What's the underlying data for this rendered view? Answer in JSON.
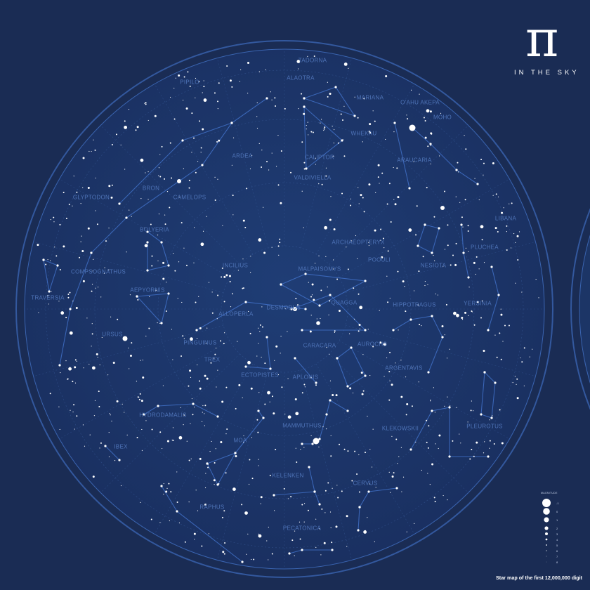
{
  "title": {
    "symbol": "π",
    "subtitle": "IN THE SKY"
  },
  "caption": "Star map of the first 12,000,000 digit",
  "colors": {
    "background": "#1a2c54",
    "disc": "#1c3566",
    "lines": "#3f6ec4",
    "labels": "#4f74b8",
    "stars": "#ffffff"
  },
  "legend": {
    "title": "MAGNITUDE",
    "magnitudes": [
      "-1",
      "0",
      "1",
      "2",
      "3",
      "4",
      "5",
      "6",
      "7",
      "8"
    ]
  },
  "constellations": [
    "TADORNA",
    "ALAOTRA",
    "PIPILO",
    "MARIANA",
    "O'AHU AKEPA",
    "MOHO",
    "WHEKAU",
    "CALIPTOR",
    "ARAUCARIA",
    "ARDEA",
    "VALDIVIELLA",
    "BRON",
    "GLYPTODON",
    "CAMELOPS",
    "BOLYERIA",
    "LIBANA",
    "ARCHAEOPTERYX",
    "INCILIUS",
    "PLUCHEA",
    "MALPAISOMYS",
    "POOULI",
    "NESIOTA",
    "COMPSOGNATHUS",
    "AEPYORNIS",
    "TRAVERSIA",
    "QUAGGA",
    "HIPPOTRAGUS",
    "YERSINIA",
    "ALLOPERLA",
    "DESMODUS",
    "URSUS",
    "PINGUINUS",
    "CARACARA",
    "AUROCHS",
    "TREX",
    "ARGENTAVIS",
    "ECTOPISTES",
    "APLONIS",
    "HYDRODAMALIS",
    "MAMMUTHUS",
    "KLEKOWSKII",
    "PLEUROTUS",
    "IBEX",
    "MOA",
    "KELENKEN",
    "CERVUS",
    "RAPHUS",
    "PECATONICA"
  ]
}
